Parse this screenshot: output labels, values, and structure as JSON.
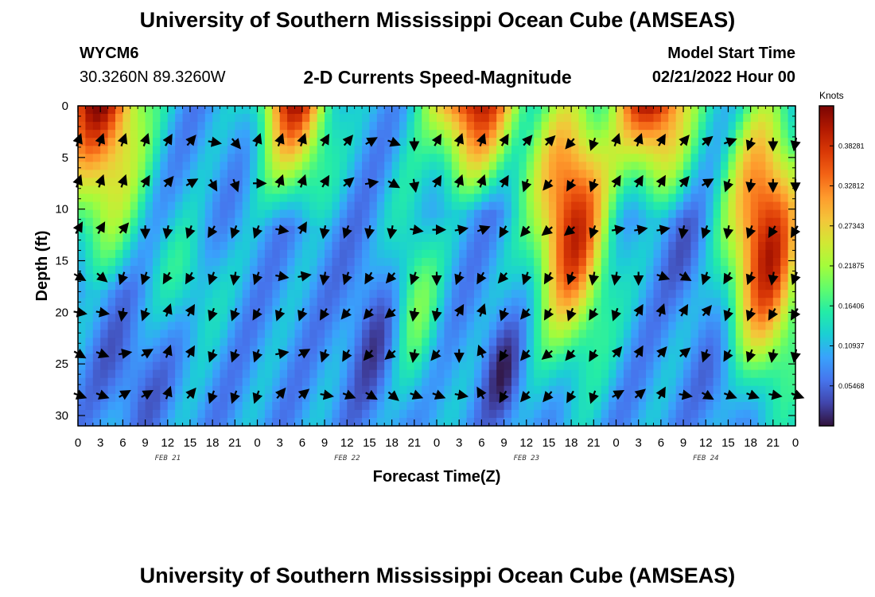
{
  "header": {
    "title": "University of Southern Mississippi Ocean Cube (AMSEAS)",
    "station_id": "WYCM6",
    "coords": "30.3260N  89.3260W",
    "chart_title": "2-D Currents Speed-Magnitude",
    "model_start_label": "Model Start Time",
    "model_start_value": "02/21/2022 Hour 00"
  },
  "footer": {
    "title": "University of Southern Mississippi Ocean Cube (AMSEAS)"
  },
  "chart_data": {
    "type": "heatmap",
    "title": "2-D Currents Speed-Magnitude",
    "xlabel": "Forecast Time(Z)",
    "ylabel": "Depth (ft)",
    "x_ticks": [
      "0",
      "3",
      "6",
      "9",
      "12",
      "15",
      "18",
      "21",
      "0",
      "3",
      "6",
      "9",
      "12",
      "15",
      "18",
      "21",
      "0",
      "3",
      "6",
      "9",
      "12",
      "15",
      "18",
      "21",
      "0",
      "3",
      "6",
      "9",
      "12",
      "15",
      "18",
      "21",
      "0"
    ],
    "day_labels": [
      {
        "label": "FEB 21",
        "hour": 12
      },
      {
        "label": "FEB 22",
        "hour": 36
      },
      {
        "label": "FEB 23",
        "hour": 60
      },
      {
        "label": "FEB 24",
        "hour": 84
      }
    ],
    "xlim": [
      0,
      96
    ],
    "ylim": [
      0,
      31
    ],
    "y_ticks": [
      "0",
      "5",
      "10",
      "15",
      "20",
      "25",
      "30"
    ],
    "y_tick_values": [
      0,
      5,
      10,
      15,
      20,
      25,
      30
    ],
    "colorbar": {
      "unit": "Knots",
      "min": 0.0,
      "max": 0.4375,
      "labels": [
        "0.38281",
        "0.32812",
        "0.27343",
        "0.21875",
        "0.16406",
        "0.10937",
        "0.05468"
      ],
      "label_values": [
        0.38281,
        0.32812,
        0.27343,
        0.21875,
        0.16406,
        0.10937,
        0.05468
      ],
      "colors": [
        "#30123b",
        "#4145ab",
        "#4675ed",
        "#39a2fc",
        "#1bcfd4",
        "#24eca6",
        "#61fc6c",
        "#a4fc3b",
        "#d1e834",
        "#f3c63a",
        "#fe9b2d",
        "#f36315",
        "#d93806",
        "#b11901",
        "#7a0403"
      ]
    },
    "arrow_depths": [
      3.5,
      7.5,
      12,
      16.5,
      20,
      24,
      28
    ],
    "arrow_hours": [
      0,
      3,
      6,
      9,
      12,
      15,
      18,
      21,
      24,
      27,
      30,
      33,
      36,
      39,
      42,
      45,
      48,
      51,
      54,
      57,
      60,
      63,
      66,
      69,
      72,
      75,
      78,
      81,
      84,
      87,
      90,
      93,
      96
    ],
    "arrow_directions_deg": [
      [
        20,
        20,
        20,
        20,
        30,
        40,
        100,
        140,
        20,
        20,
        20,
        30,
        40,
        60,
        110,
        180,
        30,
        20,
        20,
        30,
        40,
        45,
        220,
        200,
        20,
        20,
        30,
        40,
        50,
        70,
        200,
        180,
        190
      ],
      [
        20,
        20,
        20,
        30,
        40,
        60,
        150,
        160,
        90,
        20,
        20,
        30,
        50,
        80,
        120,
        170,
        30,
        20,
        20,
        30,
        200,
        220,
        210,
        200,
        30,
        30,
        30,
        40,
        60,
        200,
        190,
        180,
        180
      ],
      [
        30,
        30,
        40,
        180,
        190,
        200,
        210,
        200,
        200,
        100,
        30,
        190,
        200,
        190,
        190,
        100,
        90,
        80,
        70,
        210,
        220,
        230,
        230,
        200,
        80,
        80,
        80,
        190,
        200,
        190,
        200,
        210,
        210
      ],
      [
        120,
        130,
        200,
        200,
        210,
        210,
        200,
        190,
        200,
        100,
        80,
        190,
        200,
        210,
        220,
        200,
        180,
        200,
        210,
        220,
        200,
        210,
        200,
        190,
        190,
        180,
        110,
        120,
        200,
        210,
        200,
        190,
        200
      ],
      [
        100,
        100,
        190,
        200,
        20,
        30,
        200,
        200,
        210,
        200,
        200,
        210,
        220,
        220,
        230,
        190,
        190,
        30,
        20,
        200,
        220,
        210,
        200,
        210,
        200,
        30,
        20,
        30,
        40,
        200,
        200,
        210,
        210
      ],
      [
        120,
        110,
        80,
        60,
        20,
        30,
        200,
        200,
        200,
        80,
        60,
        200,
        210,
        220,
        230,
        190,
        220,
        180,
        340,
        210,
        220,
        230,
        220,
        210,
        40,
        30,
        40,
        50,
        200,
        210,
        200,
        190,
        190
      ],
      [
        110,
        110,
        60,
        60,
        20,
        40,
        200,
        200,
        200,
        40,
        50,
        100,
        110,
        120,
        130,
        110,
        110,
        100,
        330,
        210,
        220,
        220,
        210,
        200,
        60,
        50,
        30,
        100,
        120,
        110,
        110,
        100,
        110
      ]
    ]
  }
}
